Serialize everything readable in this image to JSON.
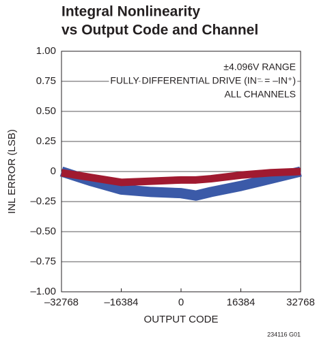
{
  "chart_data": {
    "type": "line",
    "title": [
      "Integral Nonlinearity",
      "vs Output Code and Channel"
    ],
    "x_label": "OUTPUT CODE",
    "y_label": "INL ERROR (LSB)",
    "annotation": [
      "±4.096V RANGE",
      "FULLY DIFFERENTIAL DRIVE (IN⁻ = –IN⁺)",
      "ALL CHANNELS"
    ],
    "figure_id": "234116 G01",
    "x": [
      -32768,
      -24576,
      -16384,
      -8192,
      0,
      4096,
      8192,
      16384,
      24576,
      32768
    ],
    "series": [
      {
        "color": "#3b5aa8",
        "values": [
          0.0,
          -0.08,
          -0.15,
          -0.17,
          -0.18,
          -0.2,
          -0.17,
          -0.12,
          -0.06,
          0.0
        ]
      },
      {
        "color": "#a01a30",
        "values": [
          -0.01,
          -0.05,
          -0.09,
          -0.08,
          -0.07,
          -0.07,
          -0.06,
          -0.03,
          -0.01,
          0.0
        ]
      }
    ],
    "xlim": [
      -32768,
      32768
    ],
    "xticks": [
      {
        "value": -32768,
        "label": "–32768"
      },
      {
        "value": -16384,
        "label": "–16384"
      },
      0,
      16384,
      32768
    ],
    "ylim": [
      -1,
      1
    ],
    "yticks": [
      {
        "value": -1,
        "label": "–1.00"
      },
      {
        "value": -0.75,
        "label": "–0.75"
      },
      {
        "value": -0.5,
        "label": "–0.50"
      },
      {
        "value": -0.25,
        "label": "–0.25"
      },
      0,
      0.25,
      {
        "value": 0.5,
        "label": "0.50"
      },
      0.75,
      {
        "value": 1,
        "label": "1.00"
      }
    ],
    "grid": true
  }
}
